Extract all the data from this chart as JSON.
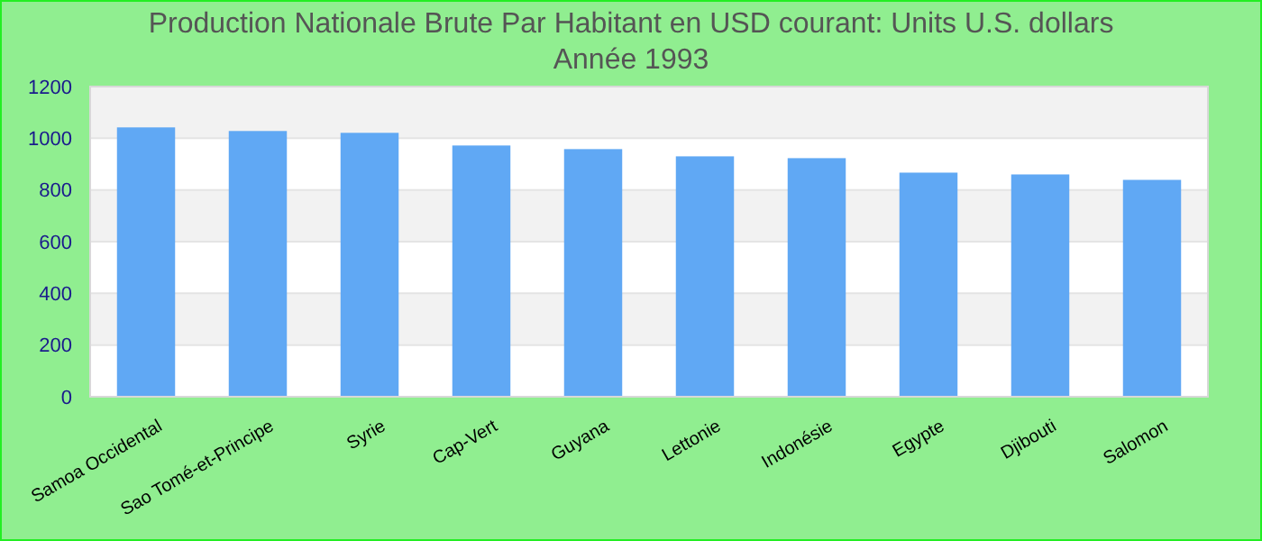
{
  "chart_data": {
    "type": "bar",
    "title": "Production Nationale Brute Par Habitant en USD courant: Units U.S. dollars",
    "subtitle": "Année 1993",
    "categories": [
      "Samoa Occidental",
      "Sao Tomé-et-Principe",
      "Syrie",
      "Cap-Vert",
      "Guyana",
      "Lettonie",
      "Indonésie",
      "Egypte",
      "Djibouti",
      "Salomon"
    ],
    "values": [
      1042,
      1028,
      1021,
      972,
      958,
      930,
      923,
      867,
      860,
      839
    ],
    "color": "#60a8f4",
    "ylim": [
      0,
      1200
    ],
    "yticks": [
      0,
      200,
      400,
      600,
      800,
      1000,
      1200
    ],
    "grid": "y"
  }
}
